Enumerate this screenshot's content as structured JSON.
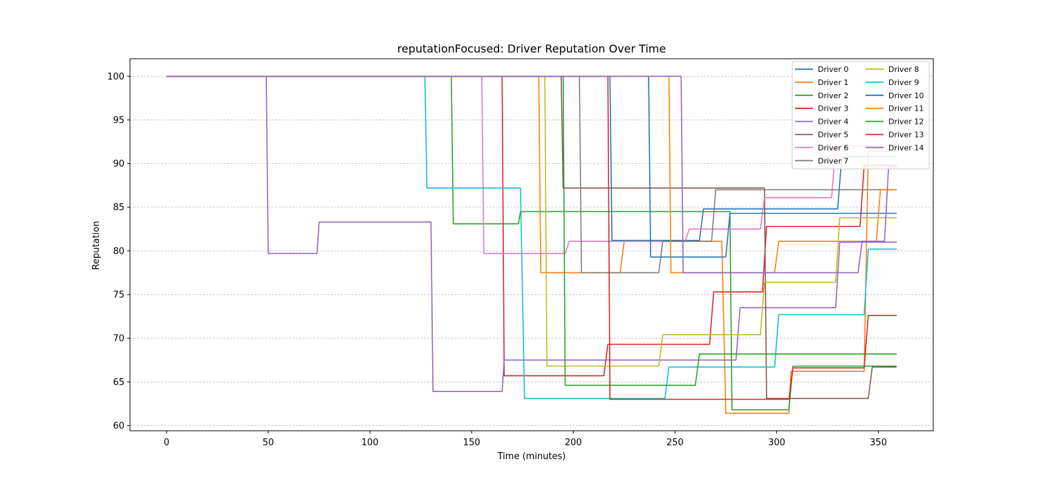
{
  "chart_data": {
    "type": "line",
    "title": "reputationFocused: Driver Reputation Over Time",
    "xlabel": "Time (minutes)",
    "ylabel": "Reputation",
    "xlim": [
      -18,
      377
    ],
    "ylim": [
      59.4,
      102.0
    ],
    "xticks": [
      0,
      50,
      100,
      150,
      200,
      250,
      300,
      350
    ],
    "yticks": [
      60,
      65,
      70,
      75,
      80,
      85,
      90,
      95,
      100
    ],
    "grid": "y-dashed",
    "legend_position": "top-right",
    "legend_columns": 2,
    "series": [
      {
        "name": "Driver 0",
        "color": "#1f77b4",
        "points": [
          [
            0,
            100
          ],
          [
            218,
            100
          ],
          [
            219,
            81.2
          ],
          [
            262,
            81.2
          ],
          [
            264,
            84.8
          ],
          [
            330,
            84.8
          ],
          [
            332,
            90.8
          ],
          [
            359,
            90.8
          ]
        ]
      },
      {
        "name": "Driver 1",
        "color": "#ff7f0e",
        "points": [
          [
            0,
            100
          ],
          [
            183,
            100
          ],
          [
            184,
            77.5
          ],
          [
            223,
            77.5
          ],
          [
            225,
            81.1
          ],
          [
            273,
            81.1
          ],
          [
            275,
            61.4
          ],
          [
            306,
            61.4
          ],
          [
            307,
            66.2
          ],
          [
            343,
            66.2
          ],
          [
            345,
            91.4
          ],
          [
            359,
            91.4
          ]
        ]
      },
      {
        "name": "Driver 2",
        "color": "#2ca02c",
        "points": [
          [
            0,
            100
          ],
          [
            140,
            100
          ],
          [
            141,
            83.1
          ],
          [
            173,
            83.1
          ],
          [
            174,
            84.5
          ],
          [
            277,
            84.5
          ],
          [
            278,
            61.8
          ],
          [
            306,
            61.8
          ],
          [
            308,
            66.8
          ],
          [
            359,
            66.8
          ]
        ]
      },
      {
        "name": "Driver 3",
        "color": "#d62728",
        "points": [
          [
            0,
            100
          ],
          [
            165,
            100
          ],
          [
            166,
            65.7
          ],
          [
            215,
            65.7
          ],
          [
            217,
            69.3
          ],
          [
            267,
            69.3
          ],
          [
            269,
            75.3
          ],
          [
            293,
            75.3
          ],
          [
            295,
            82.8
          ],
          [
            341,
            82.8
          ],
          [
            343,
            89.8
          ],
          [
            359,
            89.8
          ]
        ]
      },
      {
        "name": "Driver 4",
        "color": "#9467bd",
        "points": [
          [
            0,
            100
          ],
          [
            49,
            100
          ],
          [
            50,
            79.7
          ],
          [
            74,
            79.7
          ],
          [
            75,
            83.3
          ],
          [
            130,
            83.3
          ],
          [
            131,
            63.9
          ],
          [
            165,
            63.9
          ],
          [
            166,
            67.5
          ],
          [
            280,
            67.5
          ],
          [
            282,
            73.5
          ],
          [
            329,
            73.5
          ],
          [
            331,
            81.0
          ],
          [
            359,
            81.0
          ]
        ]
      },
      {
        "name": "Driver 5",
        "color": "#8c564b",
        "points": [
          [
            0,
            100
          ],
          [
            194,
            100
          ],
          [
            195,
            87.2
          ],
          [
            294,
            87.2
          ],
          [
            295,
            63.1
          ],
          [
            345,
            63.1
          ],
          [
            347,
            66.7
          ],
          [
            359,
            66.7
          ]
        ]
      },
      {
        "name": "Driver 6",
        "color": "#e377c2",
        "points": [
          [
            0,
            100
          ],
          [
            155,
            100
          ],
          [
            156,
            79.7
          ],
          [
            196,
            79.7
          ],
          [
            198,
            81.1
          ],
          [
            255,
            81.1
          ],
          [
            257,
            82.5
          ],
          [
            292,
            82.5
          ],
          [
            294,
            86.1
          ],
          [
            327,
            86.1
          ],
          [
            329,
            92.0
          ],
          [
            359,
            92.0
          ]
        ]
      },
      {
        "name": "Driver 7",
        "color": "#7f7f7f",
        "points": [
          [
            0,
            100
          ],
          [
            203,
            100
          ],
          [
            204,
            77.5
          ],
          [
            242,
            77.5
          ],
          [
            244,
            81.1
          ],
          [
            268,
            81.1
          ],
          [
            270,
            87.0
          ],
          [
            359,
            87.0
          ]
        ]
      },
      {
        "name": "Driver 8",
        "color": "#bcbd22",
        "points": [
          [
            0,
            100
          ],
          [
            186,
            100
          ],
          [
            187,
            66.8
          ],
          [
            242,
            66.8
          ],
          [
            244,
            70.4
          ],
          [
            292,
            70.4
          ],
          [
            294,
            76.4
          ],
          [
            329,
            76.4
          ],
          [
            331,
            83.8
          ],
          [
            359,
            83.8
          ]
        ]
      },
      {
        "name": "Driver 9",
        "color": "#17becf",
        "points": [
          [
            0,
            100
          ],
          [
            127,
            100
          ],
          [
            128,
            87.2
          ],
          [
            174,
            87.2
          ],
          [
            176,
            63.1
          ],
          [
            245,
            63.1
          ],
          [
            247,
            66.7
          ],
          [
            299,
            66.7
          ],
          [
            301,
            72.7
          ],
          [
            343,
            72.7
          ],
          [
            345,
            80.2
          ],
          [
            359,
            80.2
          ]
        ]
      },
      {
        "name": "Driver 10",
        "color": "#1f77b4",
        "points": [
          [
            0,
            100
          ],
          [
            237,
            100
          ],
          [
            238,
            79.3
          ],
          [
            275,
            79.3
          ],
          [
            277,
            84.3
          ],
          [
            359,
            84.3
          ]
        ]
      },
      {
        "name": "Driver 11",
        "color": "#ff7f0e",
        "points": [
          [
            0,
            100
          ],
          [
            247,
            100
          ],
          [
            248,
            77.5
          ],
          [
            299,
            77.5
          ],
          [
            301,
            81.1
          ],
          [
            349,
            81.1
          ],
          [
            351,
            87.0
          ],
          [
            359,
            87.0
          ]
        ]
      },
      {
        "name": "Driver 12",
        "color": "#2ca02c",
        "points": [
          [
            0,
            100
          ],
          [
            195,
            100
          ],
          [
            196,
            64.6
          ],
          [
            260,
            64.6
          ],
          [
            262,
            68.2
          ],
          [
            359,
            68.2
          ]
        ]
      },
      {
        "name": "Driver 13",
        "color": "#d62728",
        "points": [
          [
            0,
            100
          ],
          [
            217,
            100
          ],
          [
            218,
            63.0
          ],
          [
            306,
            63.0
          ],
          [
            308,
            66.6
          ],
          [
            343,
            66.6
          ],
          [
            345,
            72.6
          ],
          [
            359,
            72.6
          ]
        ]
      },
      {
        "name": "Driver 14",
        "color": "#9467bd",
        "points": [
          [
            0,
            100
          ],
          [
            253,
            100
          ],
          [
            254,
            77.5
          ],
          [
            340,
            77.5
          ],
          [
            342,
            81.1
          ],
          [
            353,
            81.1
          ],
          [
            355,
            89.6
          ],
          [
            359,
            89.6
          ]
        ]
      }
    ]
  }
}
